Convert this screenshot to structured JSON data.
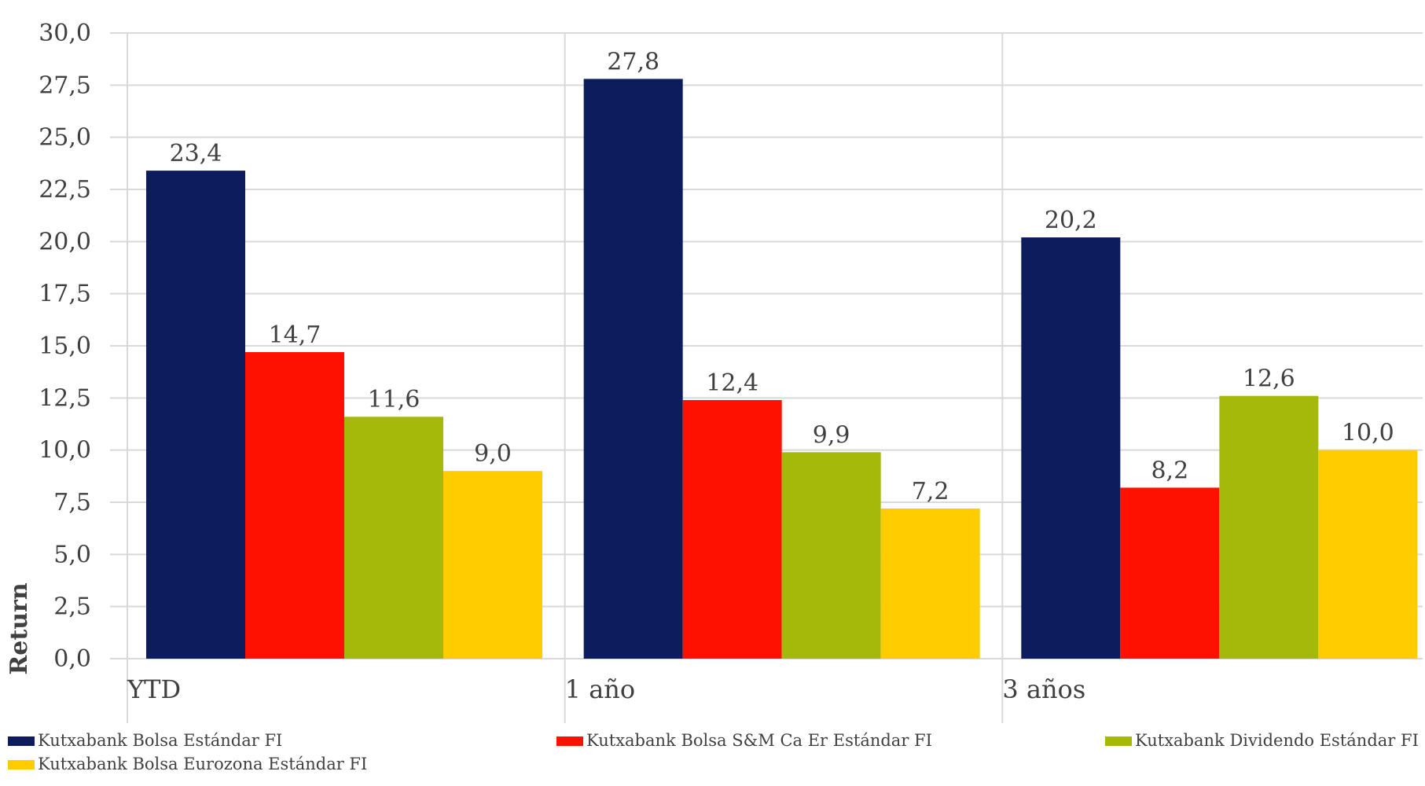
{
  "chart_data": {
    "type": "bar",
    "title": "",
    "xlabel": "",
    "ylabel": "Return",
    "ylim": [
      0,
      30
    ],
    "yticks": [
      "0,0",
      "2,5",
      "5,0",
      "7,5",
      "10,0",
      "12,5",
      "15,0",
      "17,5",
      "20,0",
      "22,5",
      "25,0",
      "27,5",
      "30,0"
    ],
    "categories": [
      "YTD",
      "1 año",
      "3 años"
    ],
    "grid": true,
    "legend_position": "bottom",
    "series": [
      {
        "name": "Kutxabank Bolsa Estándar FI",
        "color": "#0c1c5c",
        "values": [
          23.4,
          27.8,
          20.2
        ],
        "labels": [
          "23,4",
          "27,8",
          "20,2"
        ]
      },
      {
        "name": "Kutxabank Bolsa S&M Ca Er Estándar FI",
        "color": "#ff1100",
        "values": [
          14.7,
          12.4,
          8.2
        ],
        "labels": [
          "14,7",
          "12,4",
          "8,2"
        ]
      },
      {
        "name": "Kutxabank Dividendo Estándar FI",
        "color": "#a5b90a",
        "values": [
          11.6,
          9.9,
          12.6
        ],
        "labels": [
          "11,6",
          "9,9",
          "12,6"
        ]
      },
      {
        "name": "Kutxabank Bolsa Eurozona Estándar FI",
        "color": "#ffcc00",
        "values": [
          9.0,
          7.2,
          10.0
        ],
        "labels": [
          "9,0",
          "7,2",
          "10,0"
        ]
      }
    ]
  }
}
